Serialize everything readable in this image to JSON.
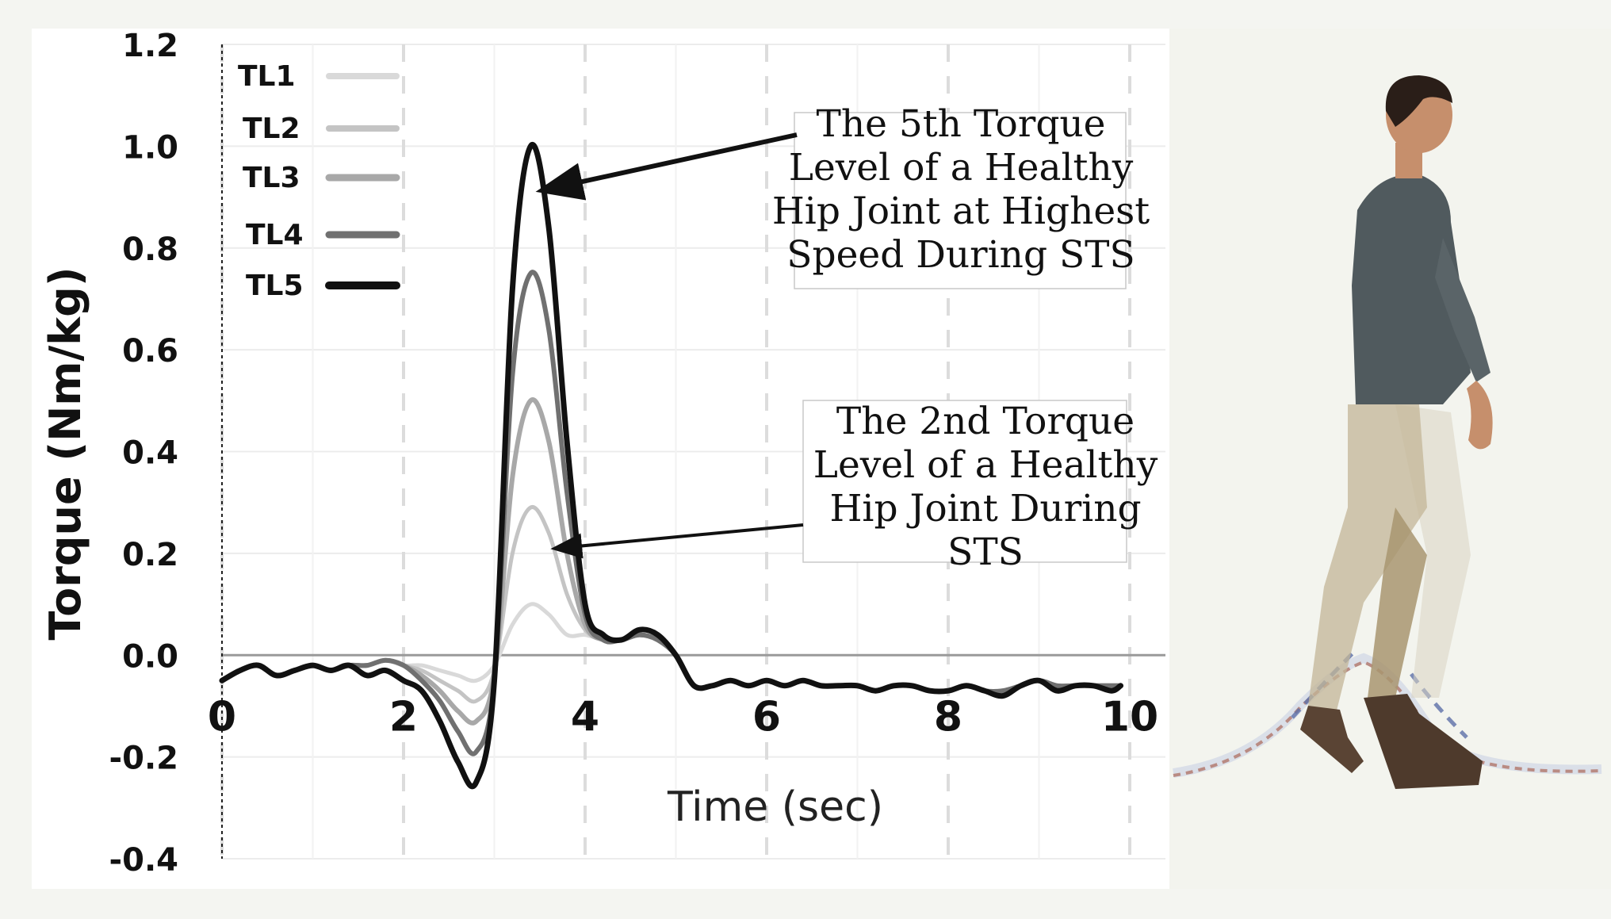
{
  "chart_data": {
    "type": "line",
    "title": "",
    "xlabel": "Time (sec)",
    "ylabel": "Torque (Nm/kg)",
    "xlim": [
      0,
      10
    ],
    "ylim": [
      -0.4,
      1.2
    ],
    "x_ticks": [
      "0",
      "2",
      "4",
      "6",
      "8",
      "10"
    ],
    "y_ticks": [
      "1.2",
      "1.0",
      "0.8",
      "0.6",
      "0.4",
      "0.2",
      "0.0",
      "-0.2",
      "-0.4"
    ],
    "grid": "dashed",
    "legend_position": "top-left",
    "x": [
      0.0,
      0.2,
      0.4,
      0.6,
      0.8,
      1.0,
      1.2,
      1.4,
      1.6,
      1.8,
      2.0,
      2.2,
      2.4,
      2.6,
      2.8,
      3.0,
      3.2,
      3.4,
      3.6,
      3.8,
      4.0,
      4.2,
      4.4,
      4.6,
      4.8,
      5.0,
      5.2,
      5.4,
      5.6,
      5.8,
      6.0,
      6.2,
      6.4,
      6.6,
      6.8,
      7.0,
      7.2,
      7.4,
      7.6,
      7.8,
      8.0,
      8.2,
      8.4,
      8.6,
      8.8,
      9.0,
      9.2,
      9.4,
      9.6,
      9.8,
      9.9
    ],
    "series": [
      {
        "name": "TL1",
        "color": "#d9d9d9",
        "width": 5,
        "values": [
          -0.05,
          -0.03,
          -0.02,
          -0.04,
          -0.03,
          -0.02,
          -0.03,
          -0.02,
          -0.02,
          -0.01,
          -0.02,
          -0.02,
          -0.03,
          -0.04,
          -0.05,
          -0.02,
          0.06,
          0.1,
          0.08,
          0.04,
          0.04,
          0.03,
          0.03,
          0.04,
          0.03,
          0.0,
          -0.06,
          -0.06,
          -0.05,
          -0.06,
          -0.05,
          -0.06,
          -0.05,
          -0.06,
          -0.06,
          -0.06,
          -0.07,
          -0.06,
          -0.06,
          -0.07,
          -0.07,
          -0.06,
          -0.07,
          -0.07,
          -0.06,
          -0.05,
          -0.06,
          -0.06,
          -0.06,
          -0.06,
          -0.06
        ]
      },
      {
        "name": "TL2",
        "color": "#c4c4c4",
        "width": 5,
        "values": [
          -0.05,
          -0.03,
          -0.02,
          -0.04,
          -0.03,
          -0.02,
          -0.03,
          -0.02,
          -0.02,
          -0.01,
          -0.02,
          -0.03,
          -0.05,
          -0.07,
          -0.09,
          -0.03,
          0.2,
          0.29,
          0.24,
          0.12,
          0.05,
          0.03,
          0.03,
          0.04,
          0.03,
          0.0,
          -0.06,
          -0.06,
          -0.05,
          -0.06,
          -0.05,
          -0.06,
          -0.05,
          -0.06,
          -0.06,
          -0.06,
          -0.07,
          -0.06,
          -0.06,
          -0.07,
          -0.07,
          -0.06,
          -0.07,
          -0.07,
          -0.06,
          -0.05,
          -0.06,
          -0.06,
          -0.06,
          -0.06,
          -0.06
        ]
      },
      {
        "name": "TL3",
        "color": "#a8a8a8",
        "width": 6,
        "values": [
          -0.05,
          -0.03,
          -0.02,
          -0.04,
          -0.03,
          -0.02,
          -0.03,
          -0.02,
          -0.02,
          -0.01,
          -0.02,
          -0.04,
          -0.07,
          -0.11,
          -0.13,
          -0.04,
          0.35,
          0.5,
          0.42,
          0.2,
          0.06,
          0.03,
          0.03,
          0.04,
          0.03,
          0.0,
          -0.06,
          -0.06,
          -0.05,
          -0.06,
          -0.05,
          -0.06,
          -0.05,
          -0.06,
          -0.06,
          -0.06,
          -0.07,
          -0.06,
          -0.06,
          -0.07,
          -0.07,
          -0.06,
          -0.07,
          -0.07,
          -0.06,
          -0.05,
          -0.06,
          -0.06,
          -0.06,
          -0.06,
          -0.06
        ]
      },
      {
        "name": "TL4",
        "color": "#707070",
        "width": 6,
        "values": [
          -0.05,
          -0.03,
          -0.02,
          -0.04,
          -0.03,
          -0.02,
          -0.03,
          -0.02,
          -0.02,
          -0.01,
          -0.02,
          -0.05,
          -0.09,
          -0.15,
          -0.19,
          -0.05,
          0.55,
          0.75,
          0.64,
          0.32,
          0.08,
          0.03,
          0.03,
          0.04,
          0.03,
          0.0,
          -0.06,
          -0.06,
          -0.05,
          -0.06,
          -0.05,
          -0.06,
          -0.05,
          -0.06,
          -0.06,
          -0.06,
          -0.07,
          -0.06,
          -0.06,
          -0.07,
          -0.07,
          -0.06,
          -0.07,
          -0.07,
          -0.06,
          -0.05,
          -0.06,
          -0.06,
          -0.06,
          -0.06,
          -0.06
        ]
      },
      {
        "name": "TL5",
        "color": "#111111",
        "width": 7,
        "values": [
          -0.05,
          -0.03,
          -0.02,
          -0.04,
          -0.03,
          -0.02,
          -0.03,
          -0.02,
          -0.04,
          -0.03,
          -0.05,
          -0.07,
          -0.13,
          -0.21,
          -0.25,
          -0.05,
          0.72,
          1.0,
          0.84,
          0.42,
          0.1,
          0.04,
          0.03,
          0.05,
          0.04,
          0.0,
          -0.06,
          -0.06,
          -0.05,
          -0.06,
          -0.05,
          -0.06,
          -0.05,
          -0.06,
          -0.06,
          -0.06,
          -0.07,
          -0.06,
          -0.06,
          -0.07,
          -0.07,
          -0.06,
          -0.07,
          -0.08,
          -0.06,
          -0.05,
          -0.07,
          -0.06,
          -0.06,
          -0.07,
          -0.06
        ]
      }
    ],
    "annotations": [
      {
        "lines": [
          "The 5th Torque",
          "Level of a Healthy",
          "Hip Joint at Highest",
          "Speed During STS"
        ],
        "target_x": 3.4,
        "target_y": 0.93
      },
      {
        "lines": [
          "The 2nd Torque",
          "Level of a Healthy",
          "Hip Joint  During",
          "STS"
        ],
        "target_x": 3.6,
        "target_y": 0.21
      }
    ]
  }
}
